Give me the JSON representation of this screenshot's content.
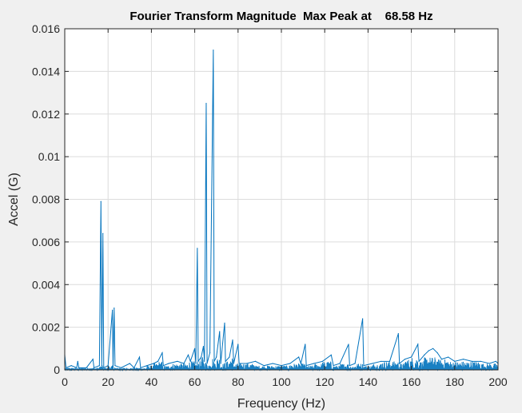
{
  "chart_data": {
    "type": "line",
    "title": "Fourier Transform Magnitude  Max Peak at    68.58 Hz",
    "xlabel": "Frequency (Hz)",
    "ylabel": "Accel (G)",
    "xlim": [
      0,
      200
    ],
    "ylim": [
      0,
      0.016
    ],
    "x_ticks": [
      0,
      20,
      40,
      60,
      80,
      100,
      120,
      140,
      160,
      180,
      200
    ],
    "y_ticks": [
      "0",
      "0.002",
      "0.004",
      "0.006",
      "0.008",
      "0.01",
      "0.012",
      "0.014",
      "0.016"
    ],
    "y_tick_values": [
      0,
      0.002,
      0.004,
      0.006,
      0.008,
      0.01,
      0.012,
      0.014,
      0.016
    ],
    "grid": true,
    "line_color": "#0072bd",
    "series": [
      {
        "points": [
          [
            0.0,
            0.0007
          ],
          [
            0.6,
            0.0001
          ],
          [
            3.0,
            0.0002
          ],
          [
            5.5,
            0.0001
          ],
          [
            6.0,
            0.0004
          ],
          [
            6.5,
            0.0001
          ],
          [
            10.0,
            0.0001
          ],
          [
            13.0,
            0.0005
          ],
          [
            13.5,
            0.0001
          ],
          [
            16.0,
            0.0002
          ],
          [
            16.7,
            0.0079
          ],
          [
            17.1,
            0.0002
          ],
          [
            17.6,
            0.0064
          ],
          [
            18.0,
            0.0001
          ],
          [
            20.0,
            0.0002
          ],
          [
            22.0,
            0.0028
          ],
          [
            22.3,
            0.0001
          ],
          [
            22.8,
            0.0029
          ],
          [
            23.2,
            0.0002
          ],
          [
            26.0,
            0.0001
          ],
          [
            30.0,
            0.0003
          ],
          [
            32.0,
            0.0001
          ],
          [
            34.5,
            0.0006
          ],
          [
            35.0,
            0.0001
          ],
          [
            38.0,
            0.0002
          ],
          [
            41.0,
            0.0003
          ],
          [
            43.0,
            0.0004
          ],
          [
            45.0,
            0.0008
          ],
          [
            45.5,
            0.0002
          ],
          [
            48.0,
            0.0003
          ],
          [
            52.0,
            0.0004
          ],
          [
            55.0,
            0.0003
          ],
          [
            57.0,
            0.0007
          ],
          [
            58.0,
            0.0004
          ],
          [
            60.0,
            0.001
          ],
          [
            60.5,
            0.0003
          ],
          [
            61.2,
            0.0057
          ],
          [
            61.6,
            0.0004
          ],
          [
            63.0,
            0.0006
          ],
          [
            64.0,
            0.0011
          ],
          [
            64.5,
            0.0004
          ],
          [
            65.3,
            0.0125
          ],
          [
            65.7,
            0.0003
          ],
          [
            67.0,
            0.0008
          ],
          [
            68.58,
            0.015
          ],
          [
            69.0,
            0.0004
          ],
          [
            70.0,
            0.0006
          ],
          [
            71.5,
            0.0018
          ],
          [
            72.0,
            0.0003
          ],
          [
            73.8,
            0.0022
          ],
          [
            74.2,
            0.0004
          ],
          [
            76.0,
            0.0006
          ],
          [
            77.5,
            0.0014
          ],
          [
            78.0,
            0.0003
          ],
          [
            80.0,
            0.0012
          ],
          [
            80.5,
            0.0003
          ],
          [
            84.0,
            0.0003
          ],
          [
            88.0,
            0.0004
          ],
          [
            92.0,
            0.0002
          ],
          [
            96.0,
            0.0003
          ],
          [
            100.0,
            0.0002
          ],
          [
            104.0,
            0.0003
          ],
          [
            108.0,
            0.0006
          ],
          [
            109.0,
            0.0003
          ],
          [
            111.0,
            0.0012
          ],
          [
            111.5,
            0.0002
          ],
          [
            115.0,
            0.0003
          ],
          [
            119.0,
            0.0004
          ],
          [
            123.0,
            0.0007
          ],
          [
            124.0,
            0.0002
          ],
          [
            127.0,
            0.0003
          ],
          [
            131.0,
            0.0012
          ],
          [
            131.5,
            0.0002
          ],
          [
            134.0,
            0.0003
          ],
          [
            137.5,
            0.0024
          ],
          [
            138.0,
            0.0002
          ],
          [
            142.0,
            0.0003
          ],
          [
            146.0,
            0.0004
          ],
          [
            150.0,
            0.0004
          ],
          [
            154.0,
            0.0017
          ],
          [
            154.5,
            0.0003
          ],
          [
            157.0,
            0.0005
          ],
          [
            160.0,
            0.0006
          ],
          [
            163.0,
            0.0012
          ],
          [
            163.5,
            0.0004
          ],
          [
            166.0,
            0.0007
          ],
          [
            168.0,
            0.0009
          ],
          [
            170.0,
            0.001
          ],
          [
            172.0,
            0.0008
          ],
          [
            174.0,
            0.0005
          ],
          [
            177.0,
            0.0006
          ],
          [
            180.0,
            0.0004
          ],
          [
            184.0,
            0.0005
          ],
          [
            188.0,
            0.0004
          ],
          [
            192.0,
            0.0004
          ],
          [
            196.0,
            0.0003
          ],
          [
            199.0,
            0.0004
          ],
          [
            200.0,
            0.0003
          ]
        ]
      }
    ]
  }
}
